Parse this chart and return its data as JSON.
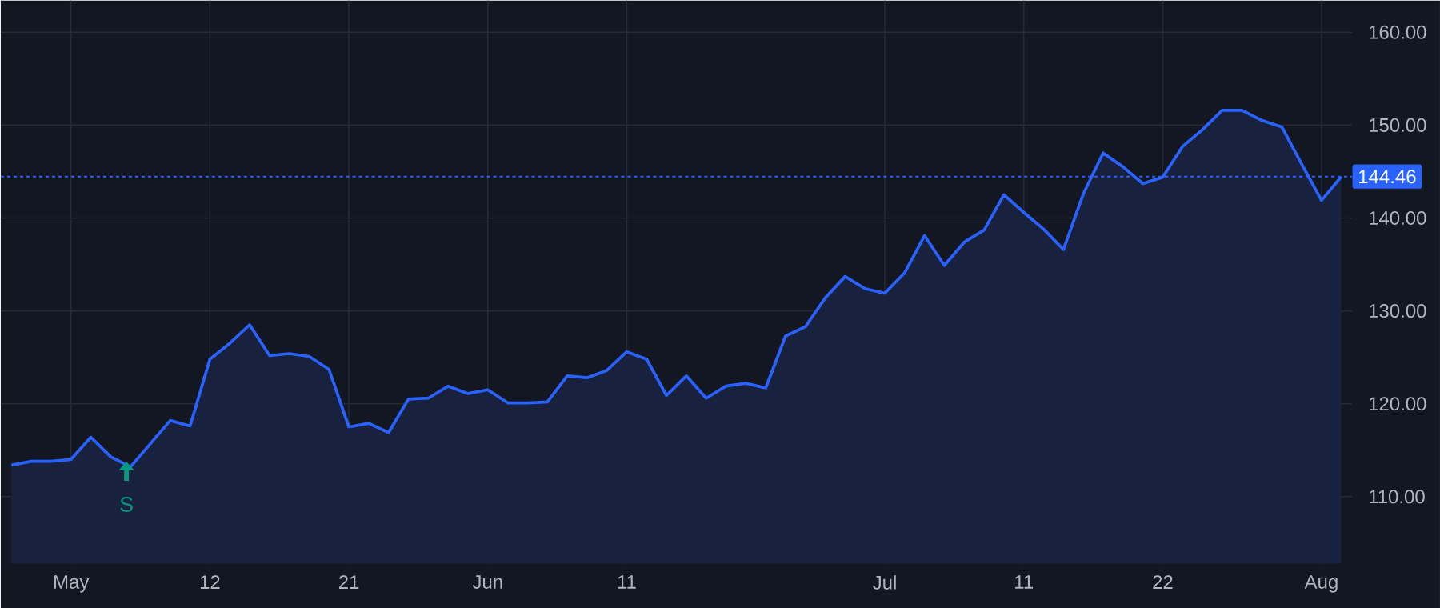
{
  "chart_data": {
    "type": "area",
    "color": "#2962ff",
    "grid": true,
    "categories": [
      null,
      null,
      null,
      "May",
      null,
      null,
      null,
      null,
      null,
      null,
      "12",
      null,
      null,
      null,
      null,
      null,
      null,
      "21",
      null,
      null,
      null,
      null,
      null,
      null,
      "Jun",
      null,
      null,
      null,
      null,
      null,
      null,
      "11",
      null,
      null,
      null,
      null,
      null,
      null,
      null,
      null,
      null,
      null,
      null,
      null,
      "Jul",
      null,
      null,
      null,
      null,
      null,
      null,
      "11",
      null,
      null,
      null,
      null,
      null,
      null,
      "22",
      null,
      null,
      null,
      null,
      null,
      null,
      null,
      "Aug",
      null
    ],
    "values": [
      113.4,
      113.8,
      113.8,
      114.0,
      116.4,
      114.3,
      113.2,
      115.7,
      118.2,
      117.6,
      124.8,
      126.5,
      128.5,
      125.2,
      125.4,
      125.1,
      123.7,
      117.5,
      117.9,
      116.9,
      120.5,
      120.6,
      121.9,
      121.1,
      121.5,
      120.1,
      120.1,
      120.2,
      123.0,
      122.8,
      123.6,
      125.6,
      124.8,
      120.9,
      123.0,
      120.6,
      121.9,
      122.2,
      121.7,
      127.3,
      128.3,
      131.4,
      133.7,
      132.4,
      131.9,
      134.1,
      138.1,
      134.9,
      137.4,
      138.7,
      142.5,
      140.6,
      138.8,
      136.6,
      142.6,
      147.0,
      145.5,
      143.7,
      144.4,
      147.7,
      149.5,
      151.6,
      151.6,
      150.5,
      149.8,
      145.8,
      141.9,
      144.46
    ],
    "ylim": [
      102.8,
      163.4
    ],
    "yticks": [
      {
        "value": 110,
        "label": "110.00"
      },
      {
        "value": 120,
        "label": "120.00"
      },
      {
        "value": 130,
        "label": "130.00"
      },
      {
        "value": 140,
        "label": "140.00"
      },
      {
        "value": 150,
        "label": "150.00"
      },
      {
        "value": 160,
        "label": "160.00"
      }
    ],
    "ref_lines": [
      {
        "axis": "y",
        "value": 144.46,
        "label": "144.46",
        "color": "#2962ff",
        "line_style": "dotted"
      }
    ],
    "annotations": [
      "S"
    ]
  }
}
